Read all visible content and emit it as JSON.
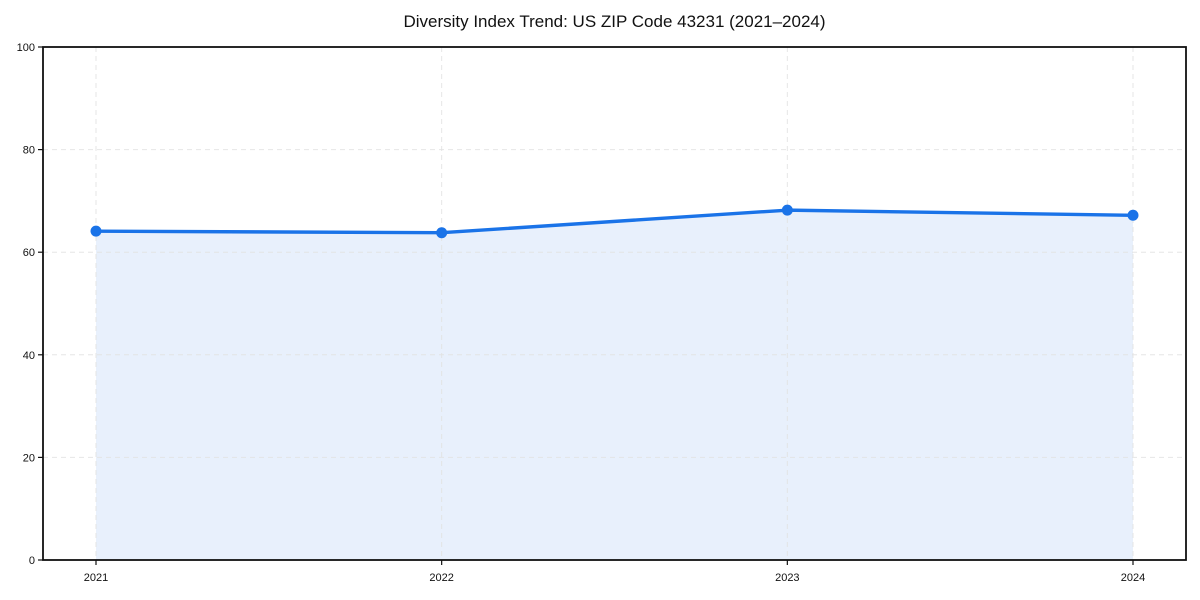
{
  "chart_data": {
    "type": "line",
    "title": "Diversity Index Trend: US ZIP Code 43231 (2021–2024)",
    "x": [
      2021,
      2022,
      2023,
      2024
    ],
    "x_tick_labels": [
      "2021",
      "2022",
      "2023",
      "2024"
    ],
    "series": [
      {
        "name": "Diversity Index",
        "values": [
          64.1,
          63.8,
          68.2,
          67.2
        ]
      }
    ],
    "ylim": [
      0,
      100
    ],
    "yticks": [
      0,
      20,
      40,
      60,
      80,
      100
    ],
    "ytick_labels": [
      "0",
      "20",
      "40",
      "60",
      "80",
      "100"
    ],
    "xlabel": "",
    "ylabel": "",
    "grid": "dashed",
    "legend_position": "none",
    "area_fill": true,
    "marker": "circle",
    "colors": {
      "line": "#1a73e8",
      "marker": "#1a73e8",
      "fill": "#e8f0fc",
      "grid": "#e2e2e2",
      "axis": "#111111",
      "text": "#111111",
      "background": "#ffffff"
    }
  }
}
